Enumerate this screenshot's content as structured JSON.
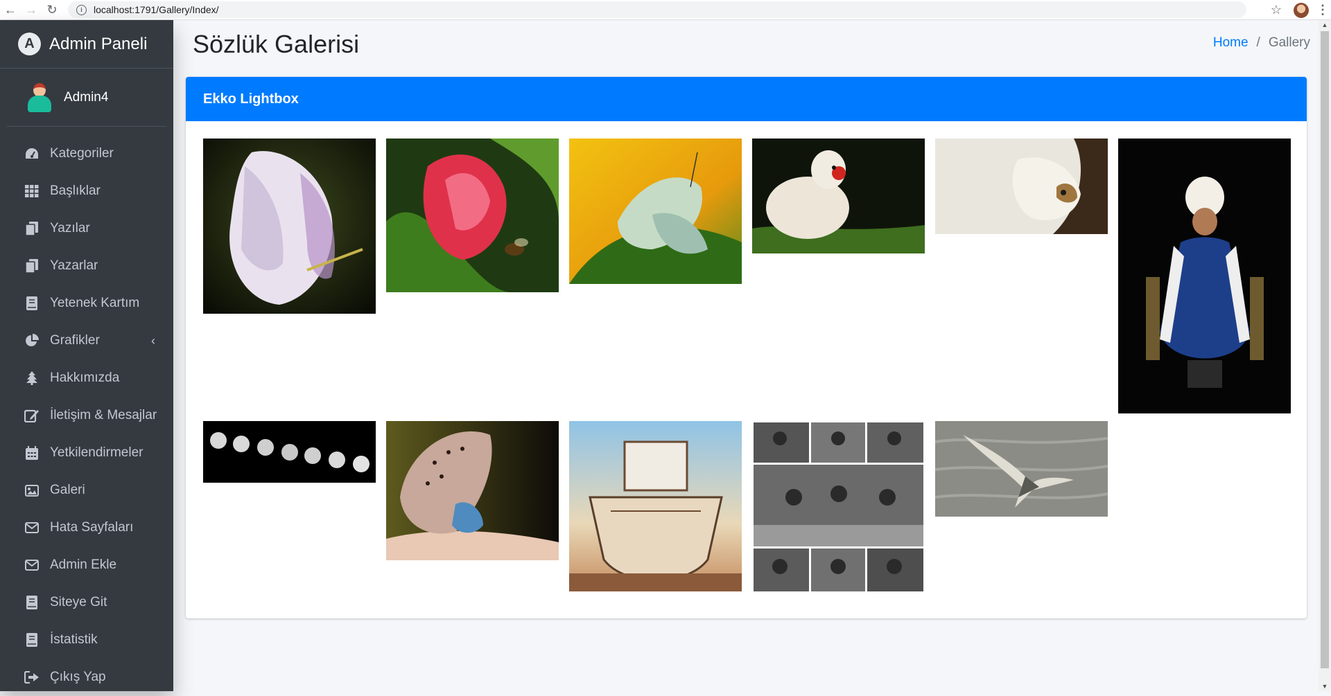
{
  "browser": {
    "url": "localhost:1791/Gallery/Index/",
    "back_icon": "arrow-left-icon",
    "forward_icon": "arrow-right-icon",
    "reload_icon": "reload-icon"
  },
  "sidebar": {
    "brand": "Admin Paneli",
    "user": "Admin4",
    "items": [
      {
        "label": "Kategoriler",
        "icon": "tachometer-icon"
      },
      {
        "label": "Başlıklar",
        "icon": "grid-icon"
      },
      {
        "label": "Yazılar",
        "icon": "copy-icon"
      },
      {
        "label": "Yazarlar",
        "icon": "copy-icon"
      },
      {
        "label": "Yetenek Kartım",
        "icon": "book-icon"
      },
      {
        "label": "Grafikler",
        "icon": "pie-chart-icon"
      },
      {
        "label": "Hakkımızda",
        "icon": "tree-icon"
      },
      {
        "label": "İletişim & Mesajlar",
        "icon": "edit-icon"
      },
      {
        "label": "Yetkilendirmeler",
        "icon": "calendar-icon"
      },
      {
        "label": "Galeri",
        "icon": "image-icon"
      },
      {
        "label": "Hata Sayfaları",
        "icon": "envelope-icon"
      },
      {
        "label": "Admin Ekle",
        "icon": "envelope-icon"
      },
      {
        "label": "Siteye Git",
        "icon": "book-icon"
      },
      {
        "label": "İstatistik",
        "icon": "book-icon"
      },
      {
        "label": "Çıkış Yap",
        "icon": "sign-out-icon"
      }
    ]
  },
  "header": {
    "title": "Sözlük Galerisi",
    "breadcrumb": {
      "home": "Home",
      "separator": "/",
      "current": "Gallery"
    }
  },
  "card": {
    "title": "Ekko Lightbox"
  },
  "gallery": [
    {
      "subject": "white-tulip-photo"
    },
    {
      "subject": "red-tulip-bee-photo"
    },
    {
      "subject": "white-butterfly-photo"
    },
    {
      "subject": "white-duck-photo"
    },
    {
      "subject": "lamb-photo"
    },
    {
      "subject": "sultan-statue-photo"
    },
    {
      "subject": "moon-phases-photo"
    },
    {
      "subject": "blue-butterfly-photo"
    },
    {
      "subject": "boat-photo"
    },
    {
      "subject": "musicians-collage-photo"
    },
    {
      "subject": "seagull-photo"
    }
  ]
}
